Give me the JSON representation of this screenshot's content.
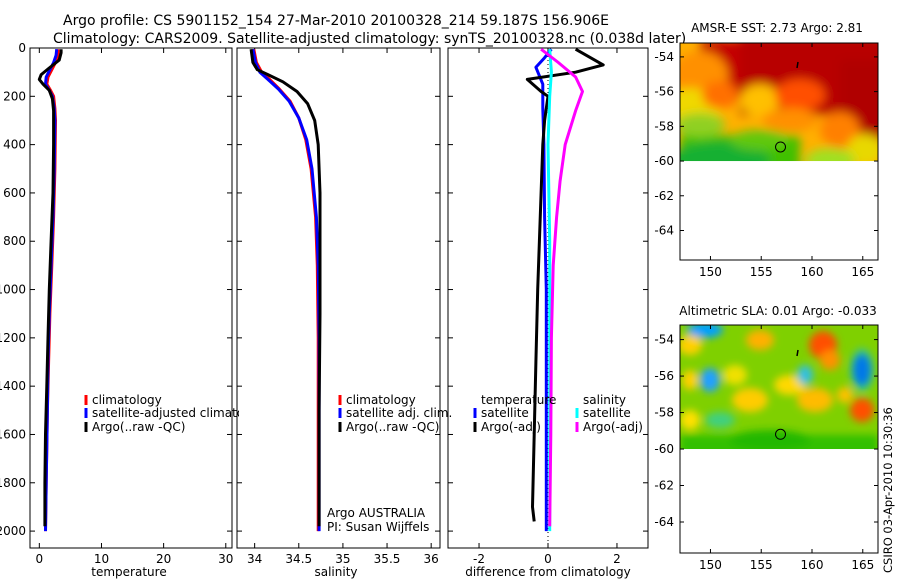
{
  "header": {
    "line1": "Argo profile: CS 5901152_154 27-Mar-2010 20100328_214 59.187S 156.906E",
    "line2": "Climatology: CARS2009. Satellite-adjusted climatology: synTS_20100328.nc (0.038d later)"
  },
  "side_label": "CSIRO 03-Apr-2010 10:30:36",
  "colors": {
    "climatology": "#ff0000",
    "satellite": "#0000ff",
    "argo": "#000000",
    "satellite_salinity_diff": "#00ffff",
    "argo_salinity_diff": "#ff00ff",
    "land_fill": "#ffffff"
  },
  "chart_data": [
    {
      "id": "temperature",
      "type": "line",
      "xlabel": "temperature",
      "xlim": [
        -1.5,
        31
      ],
      "xticks": [
        0,
        10,
        20,
        30
      ],
      "ylim": [
        2070,
        0
      ],
      "yticks": [
        0,
        200,
        400,
        600,
        800,
        1000,
        1200,
        1400,
        1600,
        1800,
        2000
      ],
      "legend": [
        "climatology",
        "satellite-adjusted climatology",
        "Argo(..raw -QC)"
      ],
      "series": [
        {
          "name": "climatology",
          "color": "#ff0000",
          "x": [
            3.0,
            3.0,
            2.6,
            2.0,
            1.4,
            1.2,
            1.8,
            2.3,
            2.5,
            2.6,
            2.5,
            2.3,
            2.0,
            1.7,
            1.5,
            1.3,
            1.1,
            1.0
          ],
          "y": [
            5,
            30,
            60,
            90,
            120,
            150,
            175,
            200,
            250,
            300,
            500,
            700,
            900,
            1100,
            1300,
            1500,
            1800,
            2000
          ]
        },
        {
          "name": "satellite-adjusted climatology",
          "color": "#0000ff",
          "x": [
            2.8,
            2.7,
            2.3,
            1.7,
            1.1,
            1.0,
            1.6,
            2.1,
            2.4,
            2.5,
            2.4,
            2.2,
            1.9,
            1.6,
            1.4,
            1.3,
            1.1,
            1.0
          ],
          "y": [
            5,
            30,
            60,
            90,
            120,
            150,
            175,
            200,
            250,
            300,
            500,
            700,
            900,
            1100,
            1300,
            1500,
            1800,
            2000
          ]
        },
        {
          "name": "Argo(..raw -QC)",
          "color": "#000000",
          "x": [
            3.5,
            3.5,
            3.2,
            1.5,
            0.3,
            0.0,
            0.6,
            1.6,
            2.1,
            2.3,
            2.3,
            2.2,
            1.9,
            1.6,
            1.4,
            1.2,
            1.0,
            0.9,
            0.9
          ],
          "y": [
            5,
            20,
            50,
            85,
            110,
            130,
            150,
            175,
            210,
            260,
            400,
            600,
            800,
            1000,
            1200,
            1400,
            1600,
            1800,
            1980
          ]
        }
      ]
    },
    {
      "id": "salinity",
      "type": "line",
      "xlabel": "salinity",
      "xlim": [
        33.8,
        36.1
      ],
      "xticks": [
        34,
        34.5,
        35,
        35.5,
        36
      ],
      "ylim": [
        2070,
        0
      ],
      "legend": [
        "climatology",
        "satellite adj. clim.",
        "Argo(..raw -QC)"
      ],
      "annotation": [
        "Argo AUSTRALIA",
        "PI: Susan Wijffels"
      ],
      "series": [
        {
          "name": "climatology",
          "color": "#ff0000",
          "x": [
            33.99,
            34.02,
            34.08,
            34.17,
            34.28,
            34.4,
            34.5,
            34.58,
            34.64,
            34.69,
            34.71,
            34.72,
            34.72,
            34.72
          ],
          "y": [
            5,
            60,
            100,
            130,
            170,
            220,
            290,
            380,
            500,
            700,
            900,
            1200,
            1600,
            2000
          ]
        },
        {
          "name": "satellite adj. clim.",
          "color": "#0000ff",
          "x": [
            33.98,
            34.01,
            34.06,
            34.15,
            34.27,
            34.39,
            34.5,
            34.59,
            34.65,
            34.7,
            34.72,
            34.73,
            34.73,
            34.73
          ],
          "y": [
            5,
            60,
            100,
            130,
            170,
            220,
            290,
            380,
            500,
            700,
            900,
            1200,
            1600,
            2000
          ]
        },
        {
          "name": "Argo(..raw -QC)",
          "color": "#000000",
          "x": [
            33.96,
            33.98,
            34.03,
            34.15,
            34.32,
            34.48,
            34.6,
            34.68,
            34.72,
            34.74,
            34.74,
            34.74,
            34.73,
            34.73
          ],
          "y": [
            5,
            60,
            90,
            110,
            140,
            180,
            230,
            300,
            400,
            600,
            800,
            1100,
            1500,
            1980
          ]
        }
      ]
    },
    {
      "id": "difference",
      "type": "line",
      "xlabel": "difference from climatology",
      "xlim": [
        -2.9,
        2.9
      ],
      "xticks": [
        -2,
        0,
        2
      ],
      "ylim": [
        2070,
        0
      ],
      "legend_title_left": "temperature",
      "legend_title_right": "salinity",
      "legend_left": [
        "satellite",
        "Argo(-adj)"
      ],
      "legend_right": [
        "satellite",
        "Argo(-adj)"
      ],
      "series": [
        {
          "name": "temperature satellite",
          "color": "#0000ff",
          "x": [
            0.1,
            -0.1,
            -0.35,
            -0.15,
            -0.15,
            -0.12,
            -0.1,
            -0.05,
            -0.05,
            -0.05,
            -0.05
          ],
          "y": [
            5,
            40,
            80,
            150,
            250,
            400,
            700,
            1000,
            1400,
            1800,
            2000
          ]
        },
        {
          "name": "temperature Argo(-adj)",
          "color": "#000000",
          "x": [
            0.8,
            1.6,
            0.8,
            -0.6,
            -0.2,
            0.0,
            -0.05,
            -0.1,
            -0.15,
            -0.2,
            -0.25,
            -0.3,
            -0.35,
            -0.4,
            -0.45,
            -0.4
          ],
          "y": [
            5,
            70,
            100,
            130,
            180,
            200,
            250,
            300,
            400,
            600,
            800,
            1000,
            1300,
            1600,
            1900,
            1960
          ]
        },
        {
          "name": "salinity satellite",
          "color": "#00ffff",
          "x": [
            0.05,
            0.1,
            0.05,
            0.0,
            0.05,
            0.05,
            0.05,
            0.05,
            0.05
          ],
          "y": [
            5,
            100,
            200,
            400,
            800,
            1200,
            1600,
            1900,
            2000
          ]
        },
        {
          "name": "salinity Argo(-adj)",
          "color": "#ff00ff",
          "x": [
            -0.2,
            0.3,
            0.8,
            1.0,
            0.8,
            0.5,
            0.35,
            0.25,
            0.15,
            0.1,
            0.08,
            0.05
          ],
          "y": [
            5,
            60,
            120,
            180,
            260,
            400,
            550,
            700,
            900,
            1200,
            1600,
            1980
          ]
        }
      ]
    },
    {
      "id": "sst_map",
      "type": "heatmap",
      "title": "AMSR-E SST: 2.73  Argo: 2.81",
      "xlim": [
        147,
        166.5
      ],
      "xticks": [
        150,
        155,
        160,
        165
      ],
      "ylim": [
        -65.7,
        -53.2
      ],
      "yticks": [
        -54,
        -56,
        -58,
        -60,
        -62,
        -64
      ],
      "data_extent_lat": [
        -60,
        -53.2
      ],
      "profile_marker": [
        156.9,
        -59.19
      ]
    },
    {
      "id": "sla_map",
      "type": "heatmap",
      "title": "Altimetric SLA: 0.01  Argo: -0.033",
      "xlim": [
        147,
        166.5
      ],
      "xticks": [
        150,
        155,
        160,
        165
      ],
      "ylim": [
        -65.7,
        -53.2
      ],
      "yticks": [
        -54,
        -56,
        -58,
        -60,
        -62,
        -64
      ],
      "data_extent_lat": [
        -60,
        -53.2
      ],
      "profile_marker": [
        156.9,
        -59.19
      ]
    }
  ]
}
